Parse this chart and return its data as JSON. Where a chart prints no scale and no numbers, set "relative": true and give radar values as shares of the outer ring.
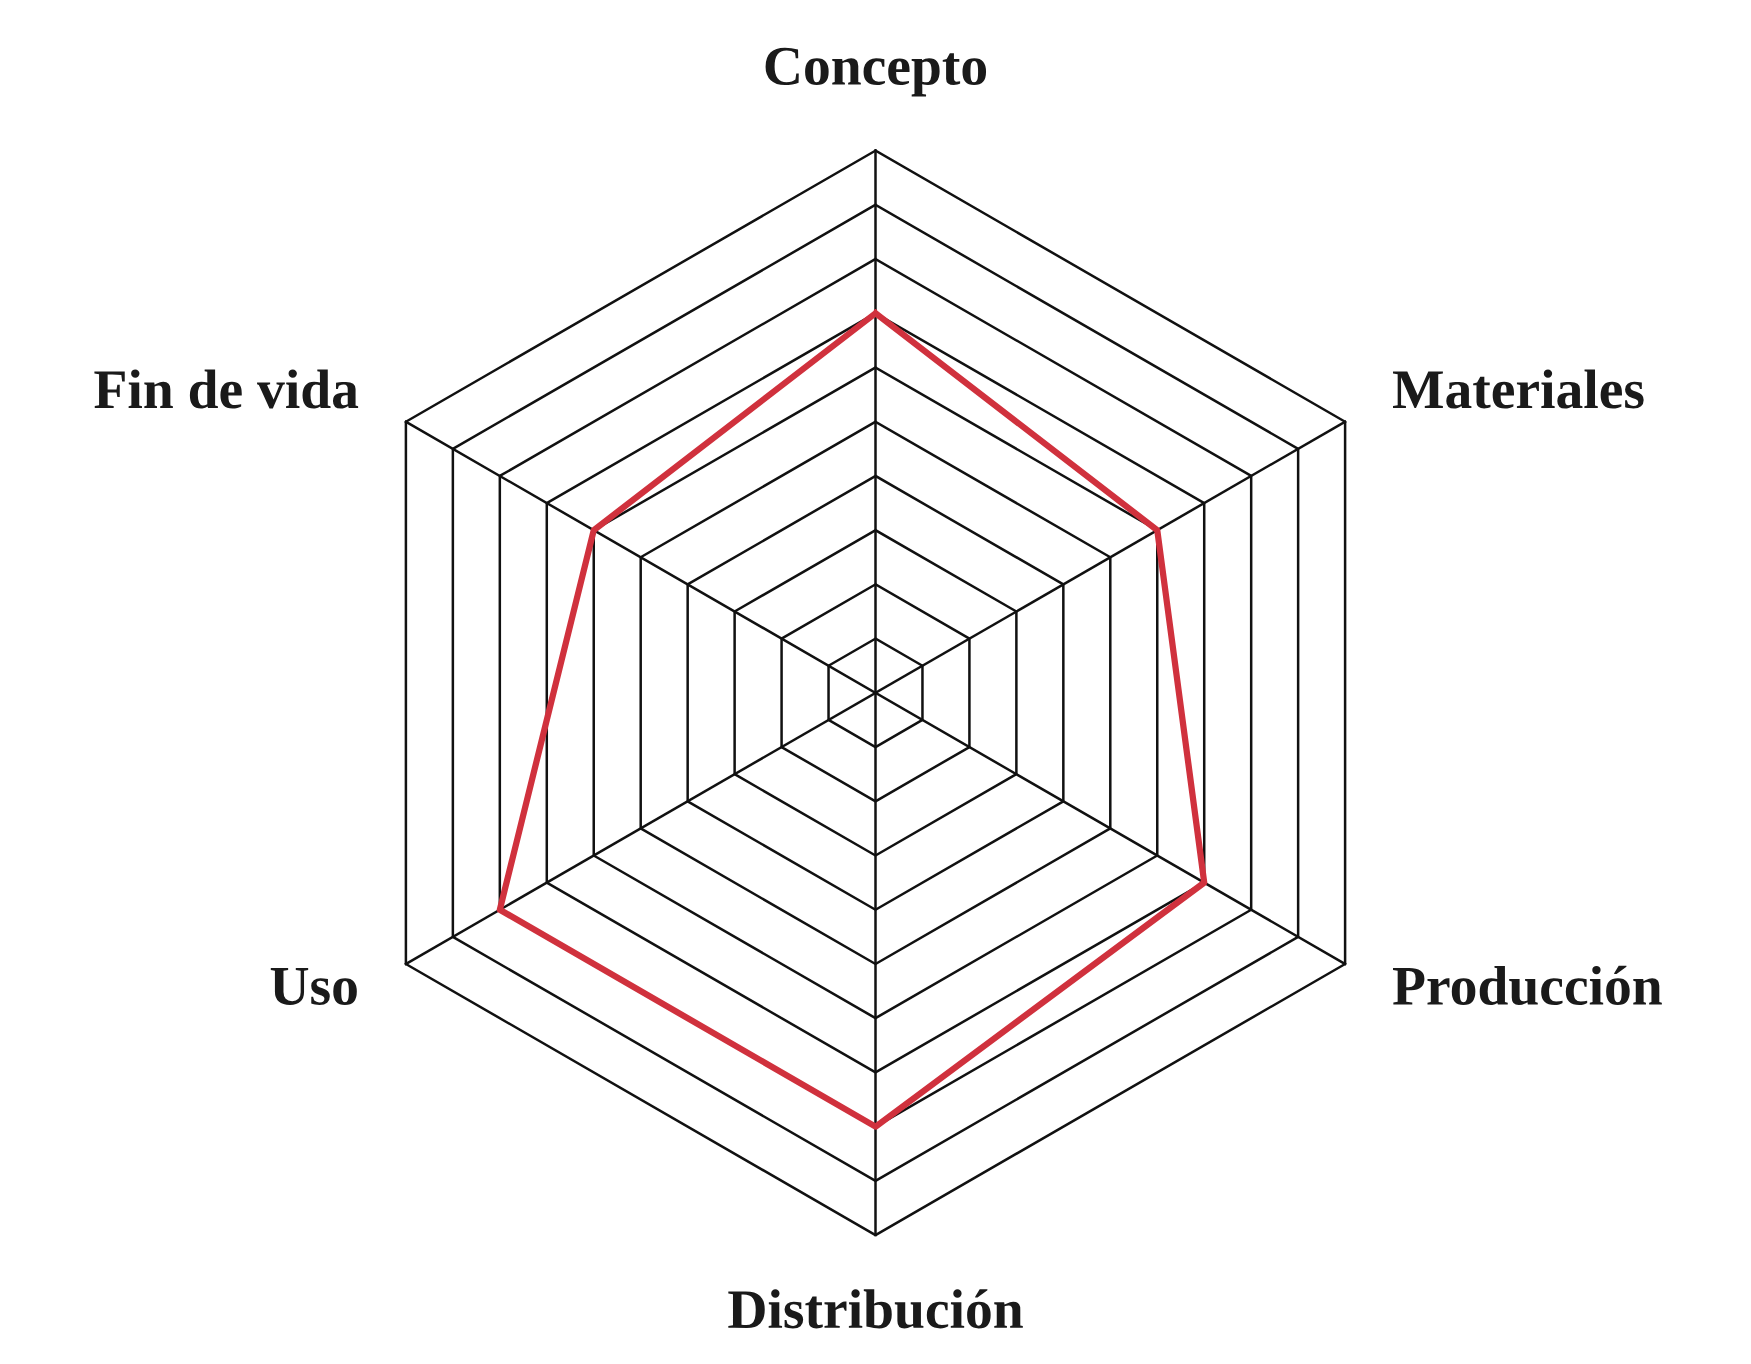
{
  "chart_data": {
    "type": "radar",
    "relative": true,
    "grid": true,
    "categories": [
      "Concepto",
      "Materiales",
      "Producción",
      "Distribución",
      "Uso",
      "Fin de vida"
    ],
    "series": [
      {
        "color": "#d0313d",
        "values": [
          0.7,
          0.6,
          0.7,
          0.8,
          0.8,
          0.6
        ]
      }
    ]
  }
}
